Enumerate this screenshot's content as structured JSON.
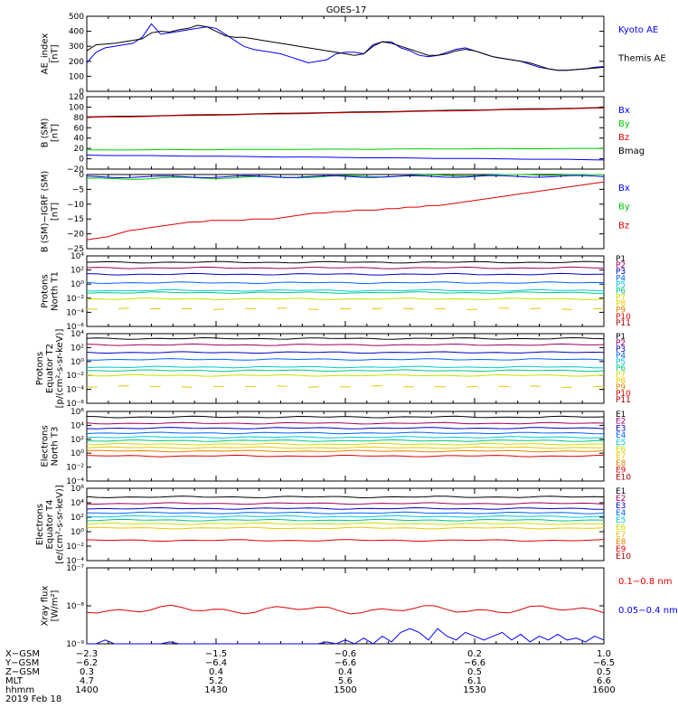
{
  "title": "GOES-17",
  "colors": {
    "black": "#000000",
    "blue": "#0000ff",
    "navy": "#0000c8",
    "green": "#00c800",
    "red": "#e00000",
    "darkred": "#a00000",
    "yellow": "#e6c800",
    "cyan": "#00c8d8"
  },
  "chart_data": [
    {
      "id": "ae",
      "type": "line",
      "ylabel": "AE_index\n[nT]",
      "ylim": [
        0,
        500
      ],
      "yticks": [
        "0",
        "100",
        "200",
        "300",
        "400",
        "500"
      ],
      "legend": [
        {
          "label": "Kyoto AE",
          "color": "#0000ff"
        },
        {
          "label": "Themis AE",
          "color": "#000000"
        }
      ],
      "series": [
        {
          "name": "Kyoto AE",
          "color": "#0000ff",
          "values": [
            190,
            260,
            290,
            300,
            310,
            320,
            360,
            450,
            380,
            390,
            400,
            410,
            420,
            430,
            420,
            380,
            340,
            300,
            280,
            270,
            260,
            250,
            230,
            210,
            190,
            200,
            210,
            250,
            260,
            260,
            250,
            310,
            330,
            330,
            290,
            270,
            240,
            230,
            240,
            260,
            280,
            290,
            270,
            250,
            230,
            220,
            210,
            200,
            180,
            160,
            150,
            140,
            140,
            145,
            150,
            160,
            165
          ]
        },
        {
          "name": "Themis AE",
          "color": "#000000",
          "values": [
            270,
            310,
            315,
            320,
            330,
            340,
            350,
            390,
            400,
            395,
            410,
            420,
            440,
            430,
            400,
            370,
            360,
            360,
            350,
            340,
            330,
            320,
            310,
            300,
            290,
            280,
            270,
            260,
            250,
            240,
            250,
            300,
            330,
            320,
            300,
            280,
            260,
            240,
            240,
            250,
            270,
            280,
            270,
            250,
            230,
            220,
            210,
            200,
            190,
            170,
            150,
            140,
            140,
            145,
            150,
            155,
            160
          ]
        }
      ]
    },
    {
      "id": "bsm",
      "type": "line",
      "ylabel": "B (SM)\n[nT]",
      "ylim": [
        -20,
        120
      ],
      "yticks": [
        "−20",
        "0",
        "20",
        "40",
        "60",
        "80",
        "100",
        "120"
      ],
      "legend": [
        {
          "label": "Bx",
          "color": "#0000ff"
        },
        {
          "label": "By",
          "color": "#00c800"
        },
        {
          "label": "Bz",
          "color": "#e00000"
        },
        {
          "label": "Bmag",
          "color": "#000000"
        }
      ],
      "series": [
        {
          "name": "Bmag",
          "color": "#000000",
          "start": 81,
          "end": 99
        },
        {
          "name": "Bz",
          "color": "#e00000",
          "start": 80,
          "end": 98
        },
        {
          "name": "By",
          "color": "#00c800",
          "start": 17,
          "end": 20
        },
        {
          "name": "Bx",
          "color": "#0000ff",
          "start": 7,
          "end": -2
        }
      ]
    },
    {
      "id": "bigrf",
      "type": "line",
      "ylabel": "B (SM)−IGRF (SM)\n[nT]",
      "ylim": [
        -25,
        0
      ],
      "yticks": [
        "−25",
        "−20",
        "−15",
        "−10",
        "−5",
        "0"
      ],
      "legend": [
        {
          "label": "Bx",
          "color": "#0000ff"
        },
        {
          "label": "By",
          "color": "#00c800"
        },
        {
          "label": "Bz",
          "color": "#e00000"
        }
      ],
      "series": [
        {
          "name": "Bz",
          "color": "#e00000",
          "values": [
            -22,
            -21.5,
            -21,
            -20,
            -19,
            -18.5,
            -18,
            -17.5,
            -17,
            -16.5,
            -16,
            -16,
            -15.5,
            -15.5,
            -15.5,
            -15.5,
            -15,
            -15,
            -15,
            -14.5,
            -14,
            -13.5,
            -13,
            -13,
            -12.5,
            -12.5,
            -12,
            -12,
            -12,
            -11.5,
            -11.5,
            -11,
            -11,
            -10.5,
            -10.5,
            -10,
            -9.5,
            -9,
            -8.5,
            -8,
            -7.5,
            -7,
            -6.5,
            -6,
            -5.5,
            -5,
            -4.5,
            -4,
            -3.5,
            -3,
            -2.5
          ]
        },
        {
          "name": "By",
          "color": "#00c800",
          "start": -1.5,
          "end": 0.2
        },
        {
          "name": "Bx",
          "color": "#0000ff",
          "start": -0.8,
          "end": -0.6
        }
      ]
    },
    {
      "id": "protons_north",
      "type": "line",
      "ylabel": "Protons\nNorth T1",
      "ylim_log": [
        -6,
        4
      ],
      "yticks": [
        "10⁴",
        "10²",
        "10⁰",
        "10⁻²",
        "10⁻⁴",
        "10⁻⁶"
      ],
      "legend": [
        {
          "label": "P1",
          "color": "#000000"
        },
        {
          "label": "P2",
          "color": "#a00060"
        },
        {
          "label": "P3",
          "color": "#0000c8"
        },
        {
          "label": "P4",
          "color": "#0064ff"
        },
        {
          "label": "P5",
          "color": "#00c8d8"
        },
        {
          "label": "P6",
          "color": "#00c880"
        },
        {
          "label": "P7",
          "color": "#c8e000"
        },
        {
          "label": "P8",
          "color": "#e6c800"
        },
        {
          "label": "P9",
          "color": "#e08000"
        },
        {
          "label": "P10",
          "color": "#e00000"
        },
        {
          "label": "P11",
          "color": "#a00000"
        }
      ],
      "series": [
        {
          "color": "#000000",
          "level": 3.1
        },
        {
          "color": "#a00060",
          "level": 2.3
        },
        {
          "color": "#0000c8",
          "level": 1.4
        },
        {
          "color": "#0064ff",
          "level": 0.2
        },
        {
          "color": "#00c8d8",
          "level": -0.9
        },
        {
          "color": "#00c880",
          "level": -1.2
        },
        {
          "color": "#c8e000",
          "level": -2.1
        },
        {
          "color": "#e6c800",
          "level": -3.5,
          "broken": true
        }
      ]
    },
    {
      "id": "protons_equator",
      "type": "line",
      "ylabel": "Protons\nEquator T2\n[p/(cm²-s-sr-keV)]",
      "ylim_log": [
        -6,
        4
      ],
      "yticks": [
        "10⁴",
        "10²",
        "10⁰",
        "10⁻²",
        "10⁻⁴",
        "10⁻⁶"
      ],
      "legend": [
        {
          "label": "P1",
          "color": "#000000"
        },
        {
          "label": "P2",
          "color": "#a00060"
        },
        {
          "label": "P3",
          "color": "#0000c8"
        },
        {
          "label": "P4",
          "color": "#0064ff"
        },
        {
          "label": "P5",
          "color": "#00c8d8"
        },
        {
          "label": "P6",
          "color": "#00c880"
        },
        {
          "label": "P7",
          "color": "#c8e000"
        },
        {
          "label": "P8",
          "color": "#e6c800"
        },
        {
          "label": "P9",
          "color": "#e08000"
        },
        {
          "label": "P10",
          "color": "#e00000"
        },
        {
          "label": "P11",
          "color": "#a00000"
        }
      ],
      "series": [
        {
          "color": "#000000",
          "level": 3.3
        },
        {
          "color": "#a00060",
          "level": 2.4
        },
        {
          "color": "#0000c8",
          "level": 1.3
        },
        {
          "color": "#0064ff",
          "level": 0.3
        },
        {
          "color": "#00c8d8",
          "level": -0.8
        },
        {
          "color": "#00c880",
          "level": -1.3
        },
        {
          "color": "#c8e000",
          "level": -2.0
        },
        {
          "color": "#e6c800",
          "level": -3.6,
          "broken": true
        }
      ]
    },
    {
      "id": "electrons_north",
      "type": "line",
      "ylabel": "Electrons\nNorth T3",
      "ylim_log": [
        -4,
        6
      ],
      "yticks": [
        "10⁶",
        "10⁴",
        "10²",
        "10⁰",
        "10⁻²",
        "10⁻⁴"
      ],
      "legend": [
        {
          "label": "E1",
          "color": "#000000"
        },
        {
          "label": "E2",
          "color": "#a00060"
        },
        {
          "label": "E3",
          "color": "#0000c8"
        },
        {
          "label": "E4",
          "color": "#0064ff"
        },
        {
          "label": "E5",
          "color": "#00c8d8"
        },
        {
          "label": "E6",
          "color": "#c8e000"
        },
        {
          "label": "E7",
          "color": "#e6c800"
        },
        {
          "label": "E8",
          "color": "#e08000"
        },
        {
          "label": "E9",
          "color": "#e00000"
        },
        {
          "label": "E10",
          "color": "#a00000"
        }
      ],
      "series": [
        {
          "color": "#000000",
          "level": 5.2
        },
        {
          "color": "#a00060",
          "level": 4.3
        },
        {
          "color": "#0000c8",
          "level": 3.6
        },
        {
          "color": "#0064ff",
          "level": 2.9
        },
        {
          "color": "#00c8d8",
          "level": 2.3
        },
        {
          "color": "#00c880",
          "level": 1.8
        },
        {
          "color": "#c8e000",
          "level": 1.3
        },
        {
          "color": "#e6c800",
          "level": 0.8
        },
        {
          "color": "#e08000",
          "level": 0.3
        },
        {
          "color": "#e00000",
          "level": -0.4
        }
      ]
    },
    {
      "id": "electrons_equator",
      "type": "line",
      "ylabel": "Electrons\nEquator T4\n[e/(cm²-s-sr-keV)]",
      "ylim_log": [
        -4,
        6
      ],
      "yticks": [
        "10⁶",
        "10⁴",
        "10²",
        "10⁰",
        "10⁻²",
        "10⁻⁴"
      ],
      "legend": [
        {
          "label": "E1",
          "color": "#000000"
        },
        {
          "label": "E2",
          "color": "#a00060"
        },
        {
          "label": "E3",
          "color": "#0000c8"
        },
        {
          "label": "E4",
          "color": "#0064ff"
        },
        {
          "label": "E5",
          "color": "#00c8d8"
        },
        {
          "label": "E6",
          "color": "#c8e000"
        },
        {
          "label": "E7",
          "color": "#e6c800"
        },
        {
          "label": "E8",
          "color": "#e08000"
        },
        {
          "label": "E9",
          "color": "#e00000"
        },
        {
          "label": "E10",
          "color": "#a00000"
        }
      ],
      "series": [
        {
          "color": "#000000",
          "level": 4.8
        },
        {
          "color": "#a00060",
          "level": 3.9
        },
        {
          "color": "#0000c8",
          "level": 3.2
        },
        {
          "color": "#0064ff",
          "level": 2.6
        },
        {
          "color": "#00c8d8",
          "level": 2.1
        },
        {
          "color": "#00c880",
          "level": 1.6
        },
        {
          "color": "#c8e000",
          "level": 1.1
        },
        {
          "color": "#e6c800",
          "level": 0.5
        },
        {
          "color": "#e00000",
          "level": -1.2
        }
      ]
    },
    {
      "id": "xray",
      "type": "line",
      "ylabel": "Xray flux\n[W/m²]",
      "ylim_log": [
        -9,
        -7
      ],
      "yticks": [
        "10⁻⁷",
        "10⁻⁸",
        "10⁻⁹"
      ],
      "legend": [
        {
          "label": "0.1−0.8 nm",
          "color": "#e00000"
        },
        {
          "label": "0.05−0.4 nm",
          "color": "#0000ff"
        }
      ],
      "series": [
        {
          "name": "0.1−0.8 nm",
          "color": "#e00000",
          "level": -8.1
        },
        {
          "name": "0.05−0.4 nm",
          "color": "#0000ff",
          "values": [
            -9.0,
            -9.0,
            -8.9,
            -9.0,
            -9.0,
            -9.0,
            -9.0,
            -9.0,
            -9.0,
            -8.95,
            -9.0,
            -9.0,
            -9.0,
            -9.0,
            -9.0,
            -9.0,
            -9.0,
            -9.0,
            -9.0,
            -9.0,
            -9.0,
            -9.0,
            -9.0,
            -9.0,
            -9.0,
            -9.0,
            -8.95,
            -9.0,
            -8.9,
            -9.0,
            -8.85,
            -9.0,
            -8.8,
            -8.95,
            -8.7,
            -8.6,
            -8.7,
            -8.9,
            -8.6,
            -8.8,
            -8.9,
            -8.7,
            -8.8,
            -8.9,
            -8.8,
            -8.7,
            -8.9,
            -8.75,
            -8.95,
            -8.8,
            -8.9,
            -8.75,
            -8.9,
            -8.85,
            -8.95,
            -8.8,
            -8.9
          ]
        }
      ]
    }
  ],
  "footer": {
    "row_labels": [
      "X−GSM",
      "Y−GSM",
      "Z−GSM",
      "MLT",
      "hhmm",
      "2019 Feb 18"
    ],
    "columns": [
      {
        "values": [
          "−2.3",
          "−6.2",
          "0.3",
          "4.7",
          "1400"
        ]
      },
      {
        "values": [
          "−1.5",
          "−6.4",
          "0.4",
          "5.2",
          "1430"
        ]
      },
      {
        "values": [
          "−0.6",
          "−6.6",
          "0.4",
          "5.6",
          "1500"
        ]
      },
      {
        "values": [
          "0.2",
          "−6.6",
          "0.5",
          "6.1",
          "1530"
        ]
      },
      {
        "values": [
          "1.0",
          "−6.5",
          "0.5",
          "6.6",
          "1600"
        ]
      }
    ]
  }
}
